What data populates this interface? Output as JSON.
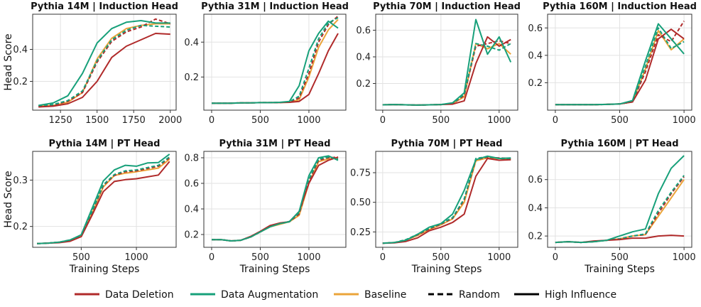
{
  "legend": {
    "data_deletion": "Data Deletion",
    "data_augmentation": "Data Augmentation",
    "baseline": "Baseline",
    "random": "Random",
    "high_influence": "High Influence"
  },
  "colors": {
    "data_deletion": "#b02a2a",
    "data_augmentation": "#17a07a",
    "baseline": "#eba43a"
  },
  "chart_data": [
    {
      "type": "line",
      "title": "Pythia 14M | Induction Head",
      "xlabel": "",
      "ylabel": "Head Score",
      "xlim": [
        1060,
        2040
      ],
      "ylim": [
        0.02,
        0.62
      ],
      "xticks": [
        1250,
        1500,
        1750,
        2000
      ],
      "yticks": [
        0.2,
        0.4
      ],
      "ytick_labels": [
        "0.2",
        "0.4"
      ],
      "x": [
        1100,
        1200,
        1300,
        1400,
        1500,
        1600,
        1700,
        1800,
        1900,
        2000
      ],
      "series": [
        {
          "group": "baseline",
          "style": "solid",
          "values": [
            0.045,
            0.05,
            0.07,
            0.13,
            0.34,
            0.47,
            0.53,
            0.55,
            0.56,
            0.56
          ]
        },
        {
          "group": "data_deletion",
          "style": "dashed",
          "values": [
            0.045,
            0.052,
            0.075,
            0.13,
            0.32,
            0.45,
            0.51,
            0.54,
            0.59,
            0.56
          ]
        },
        {
          "group": "data_augmentation",
          "style": "dashed",
          "values": [
            0.048,
            0.055,
            0.08,
            0.14,
            0.33,
            0.46,
            0.52,
            0.55,
            0.545,
            0.54
          ]
        },
        {
          "group": "data_deletion",
          "style": "solid",
          "values": [
            0.04,
            0.045,
            0.06,
            0.1,
            0.2,
            0.35,
            0.42,
            0.46,
            0.5,
            0.495
          ]
        },
        {
          "group": "data_augmentation",
          "style": "solid",
          "values": [
            0.05,
            0.065,
            0.11,
            0.25,
            0.44,
            0.53,
            0.57,
            0.58,
            0.565,
            0.565
          ]
        }
      ]
    },
    {
      "type": "line",
      "title": "Pythia 31M | Induction Head",
      "xlabel": "",
      "ylabel": "",
      "xlim": [
        -80,
        1380
      ],
      "ylim": [
        0.01,
        0.56
      ],
      "xticks": [
        0,
        500,
        1000
      ],
      "yticks": [
        0.2,
        0.4
      ],
      "ytick_labels": [
        "0.2",
        "0.4"
      ],
      "x": [
        0,
        100,
        200,
        300,
        400,
        500,
        600,
        700,
        800,
        900,
        1000,
        1100,
        1200,
        1300
      ],
      "series": [
        {
          "group": "baseline",
          "style": "solid",
          "values": [
            0.05,
            0.05,
            0.05,
            0.052,
            0.052,
            0.053,
            0.053,
            0.054,
            0.055,
            0.07,
            0.2,
            0.37,
            0.47,
            0.53
          ]
        },
        {
          "group": "data_deletion",
          "style": "dashed",
          "values": [
            0.05,
            0.05,
            0.05,
            0.052,
            0.052,
            0.053,
            0.053,
            0.054,
            0.056,
            0.08,
            0.22,
            0.4,
            0.5,
            0.55
          ]
        },
        {
          "group": "data_augmentation",
          "style": "dashed",
          "values": [
            0.05,
            0.05,
            0.05,
            0.052,
            0.052,
            0.053,
            0.053,
            0.054,
            0.058,
            0.09,
            0.25,
            0.42,
            0.51,
            0.54
          ]
        },
        {
          "group": "data_deletion",
          "style": "solid",
          "values": [
            0.05,
            0.05,
            0.05,
            0.052,
            0.052,
            0.053,
            0.053,
            0.054,
            0.055,
            0.06,
            0.1,
            0.22,
            0.35,
            0.45
          ]
        },
        {
          "group": "data_augmentation",
          "style": "solid",
          "values": [
            0.05,
            0.05,
            0.05,
            0.052,
            0.052,
            0.053,
            0.053,
            0.055,
            0.06,
            0.15,
            0.35,
            0.45,
            0.52,
            0.48
          ]
        }
      ]
    },
    {
      "type": "line",
      "title": "Pythia 70M | Induction Head",
      "xlabel": "",
      "ylabel": "",
      "xlim": [
        -60,
        1160
      ],
      "ylim": [
        0.0,
        0.72
      ],
      "xticks": [
        0,
        500,
        1000
      ],
      "yticks": [
        0.2,
        0.4,
        0.6
      ],
      "ytick_labels": [
        "0.2",
        "0.4",
        "0.6"
      ],
      "x": [
        0,
        100,
        200,
        300,
        400,
        500,
        600,
        700,
        800,
        900,
        1000,
        1100
      ],
      "series": [
        {
          "group": "baseline",
          "style": "solid",
          "values": [
            0.04,
            0.042,
            0.04,
            0.038,
            0.04,
            0.042,
            0.05,
            0.1,
            0.5,
            0.46,
            0.5,
            0.42
          ]
        },
        {
          "group": "data_deletion",
          "style": "dashed",
          "values": [
            0.04,
            0.042,
            0.04,
            0.038,
            0.04,
            0.042,
            0.05,
            0.11,
            0.48,
            0.5,
            0.52,
            0.5
          ]
        },
        {
          "group": "data_augmentation",
          "style": "dashed",
          "values": [
            0.04,
            0.042,
            0.04,
            0.038,
            0.04,
            0.042,
            0.05,
            0.12,
            0.5,
            0.48,
            0.45,
            0.5
          ]
        },
        {
          "group": "data_deletion",
          "style": "solid",
          "values": [
            0.04,
            0.042,
            0.04,
            0.038,
            0.04,
            0.042,
            0.045,
            0.07,
            0.35,
            0.55,
            0.48,
            0.53
          ]
        },
        {
          "group": "data_augmentation",
          "style": "solid",
          "values": [
            0.04,
            0.042,
            0.04,
            0.038,
            0.04,
            0.042,
            0.055,
            0.13,
            0.68,
            0.42,
            0.55,
            0.36
          ]
        }
      ]
    },
    {
      "type": "line",
      "title": "Pythia 160M | Induction Head",
      "xlabel": "",
      "ylabel": "",
      "xlim": [
        -60,
        1060
      ],
      "ylim": [
        0.0,
        0.7
      ],
      "xticks": [
        0,
        500,
        1000
      ],
      "yticks": [
        0.2,
        0.4,
        0.6
      ],
      "ytick_labels": [
        "0.2",
        "0.4",
        "0.6"
      ],
      "x": [
        0,
        100,
        200,
        300,
        400,
        500,
        600,
        700,
        800,
        900,
        1000
      ],
      "series": [
        {
          "group": "baseline",
          "style": "solid",
          "values": [
            0.04,
            0.04,
            0.04,
            0.04,
            0.042,
            0.045,
            0.06,
            0.3,
            0.58,
            0.44,
            0.52
          ]
        },
        {
          "group": "data_deletion",
          "style": "dashed",
          "values": [
            0.04,
            0.04,
            0.04,
            0.04,
            0.042,
            0.045,
            0.06,
            0.28,
            0.55,
            0.5,
            0.65
          ]
        },
        {
          "group": "data_augmentation",
          "style": "dashed",
          "values": [
            0.04,
            0.04,
            0.04,
            0.04,
            0.042,
            0.045,
            0.06,
            0.32,
            0.6,
            0.45,
            0.5
          ]
        },
        {
          "group": "data_deletion",
          "style": "solid",
          "values": [
            0.04,
            0.04,
            0.04,
            0.04,
            0.042,
            0.045,
            0.06,
            0.22,
            0.52,
            0.59,
            0.52
          ]
        },
        {
          "group": "data_augmentation",
          "style": "solid",
          "values": [
            0.04,
            0.04,
            0.04,
            0.04,
            0.042,
            0.045,
            0.07,
            0.36,
            0.63,
            0.52,
            0.41
          ]
        }
      ]
    },
    {
      "type": "line",
      "title": "Pythia 14M | PT Head",
      "xlabel": "Training Steps",
      "ylabel": "Head Score",
      "xlim": [
        60,
        1360
      ],
      "ylim": [
        0.155,
        0.362
      ],
      "xticks": [
        500,
        1000
      ],
      "yticks": [
        0.2,
        0.3
      ],
      "ytick_labels": [
        "0.2",
        "0.3"
      ],
      "x": [
        100,
        200,
        300,
        400,
        500,
        600,
        700,
        800,
        900,
        1000,
        1100,
        1200,
        1300
      ],
      "series": [
        {
          "group": "baseline",
          "style": "solid",
          "values": [
            0.163,
            0.164,
            0.166,
            0.17,
            0.18,
            0.23,
            0.285,
            0.31,
            0.315,
            0.318,
            0.322,
            0.326,
            0.345
          ]
        },
        {
          "group": "data_deletion",
          "style": "dashed",
          "values": [
            0.163,
            0.164,
            0.166,
            0.17,
            0.18,
            0.232,
            0.288,
            0.31,
            0.318,
            0.32,
            0.325,
            0.33,
            0.348
          ]
        },
        {
          "group": "data_augmentation",
          "style": "dashed",
          "values": [
            0.163,
            0.164,
            0.166,
            0.171,
            0.181,
            0.233,
            0.29,
            0.312,
            0.32,
            0.322,
            0.327,
            0.332,
            0.35
          ]
        },
        {
          "group": "data_deletion",
          "style": "solid",
          "values": [
            0.163,
            0.164,
            0.165,
            0.168,
            0.178,
            0.225,
            0.275,
            0.297,
            0.301,
            0.303,
            0.307,
            0.311,
            0.34
          ]
        },
        {
          "group": "data_augmentation",
          "style": "solid",
          "values": [
            0.163,
            0.164,
            0.166,
            0.171,
            0.182,
            0.24,
            0.298,
            0.322,
            0.332,
            0.33,
            0.337,
            0.338,
            0.356
          ]
        }
      ]
    },
    {
      "type": "line",
      "title": "Pythia 31M | PT Head",
      "xlabel": "Training Steps",
      "ylabel": "",
      "xlim": [
        -80,
        1380
      ],
      "ylim": [
        0.1,
        0.85
      ],
      "xticks": [
        0,
        500,
        1000
      ],
      "yticks": [
        0.2,
        0.4,
        0.6,
        0.8
      ],
      "ytick_labels": [
        "0.2",
        "0.4",
        "0.6",
        "0.8"
      ],
      "x": [
        0,
        100,
        200,
        300,
        400,
        500,
        600,
        700,
        800,
        900,
        1000,
        1100,
        1200,
        1300
      ],
      "series": [
        {
          "group": "baseline",
          "style": "solid",
          "values": [
            0.16,
            0.16,
            0.15,
            0.155,
            0.18,
            0.22,
            0.26,
            0.28,
            0.3,
            0.35,
            0.6,
            0.77,
            0.79,
            0.8
          ]
        },
        {
          "group": "data_deletion",
          "style": "dashed",
          "values": [
            0.16,
            0.16,
            0.15,
            0.155,
            0.18,
            0.22,
            0.262,
            0.285,
            0.3,
            0.36,
            0.62,
            0.78,
            0.8,
            0.805
          ]
        },
        {
          "group": "data_augmentation",
          "style": "dashed",
          "values": [
            0.16,
            0.16,
            0.15,
            0.155,
            0.182,
            0.222,
            0.264,
            0.286,
            0.302,
            0.37,
            0.63,
            0.79,
            0.805,
            0.79
          ]
        },
        {
          "group": "data_deletion",
          "style": "solid",
          "values": [
            0.16,
            0.16,
            0.15,
            0.155,
            0.185,
            0.225,
            0.27,
            0.29,
            0.3,
            0.38,
            0.6,
            0.74,
            0.78,
            0.805
          ]
        },
        {
          "group": "data_augmentation",
          "style": "solid",
          "values": [
            0.16,
            0.16,
            0.15,
            0.155,
            0.18,
            0.22,
            0.26,
            0.285,
            0.3,
            0.38,
            0.66,
            0.8,
            0.815,
            0.78
          ]
        }
      ]
    },
    {
      "type": "line",
      "title": "Pythia 70M | PT Head",
      "xlabel": "Training Steps",
      "ylabel": "",
      "xlim": [
        -60,
        1160
      ],
      "ylim": [
        0.12,
        0.93
      ],
      "xticks": [
        0,
        500,
        1000
      ],
      "yticks": [
        0.25,
        0.5,
        0.75
      ],
      "ytick_labels": [
        "0.25",
        "0.50",
        "0.75"
      ],
      "x": [
        0,
        100,
        200,
        300,
        400,
        500,
        600,
        700,
        800,
        900,
        1000,
        1100
      ],
      "series": [
        {
          "group": "baseline",
          "style": "solid",
          "values": [
            0.155,
            0.16,
            0.18,
            0.22,
            0.27,
            0.31,
            0.36,
            0.5,
            0.85,
            0.875,
            0.87,
            0.86
          ]
        },
        {
          "group": "data_deletion",
          "style": "dashed",
          "values": [
            0.155,
            0.16,
            0.182,
            0.225,
            0.275,
            0.315,
            0.365,
            0.52,
            0.86,
            0.88,
            0.875,
            0.87
          ]
        },
        {
          "group": "data_augmentation",
          "style": "dashed",
          "values": [
            0.155,
            0.16,
            0.185,
            0.23,
            0.28,
            0.32,
            0.37,
            0.53,
            0.87,
            0.885,
            0.87,
            0.865
          ]
        },
        {
          "group": "data_deletion",
          "style": "solid",
          "values": [
            0.155,
            0.158,
            0.17,
            0.2,
            0.26,
            0.29,
            0.33,
            0.4,
            0.72,
            0.87,
            0.855,
            0.86
          ]
        },
        {
          "group": "data_augmentation",
          "style": "solid",
          "values": [
            0.155,
            0.16,
            0.18,
            0.23,
            0.29,
            0.32,
            0.4,
            0.6,
            0.86,
            0.89,
            0.87,
            0.875
          ]
        }
      ]
    },
    {
      "type": "line",
      "title": "Pythia 160M | PT Head",
      "xlabel": "Training Steps",
      "ylabel": "",
      "xlim": [
        -60,
        1060
      ],
      "ylim": [
        0.12,
        0.8
      ],
      "xticks": [
        0,
        500,
        1000
      ],
      "yticks": [
        0.2,
        0.4,
        0.6
      ],
      "ytick_labels": [
        "0.2",
        "0.4",
        "0.6"
      ],
      "x": [
        0,
        100,
        200,
        300,
        400,
        500,
        600,
        700,
        800,
        900,
        1000
      ],
      "series": [
        {
          "group": "baseline",
          "style": "solid",
          "values": [
            0.155,
            0.16,
            0.155,
            0.16,
            0.17,
            0.18,
            0.2,
            0.21,
            0.34,
            0.47,
            0.6
          ]
        },
        {
          "group": "data_deletion",
          "style": "dashed",
          "values": [
            0.155,
            0.16,
            0.155,
            0.16,
            0.17,
            0.18,
            0.2,
            0.21,
            0.36,
            0.5,
            0.62
          ]
        },
        {
          "group": "data_augmentation",
          "style": "dashed",
          "values": [
            0.155,
            0.16,
            0.155,
            0.16,
            0.17,
            0.18,
            0.2,
            0.215,
            0.38,
            0.51,
            0.63
          ]
        },
        {
          "group": "data_deletion",
          "style": "solid",
          "values": [
            0.155,
            0.16,
            0.155,
            0.165,
            0.17,
            0.175,
            0.185,
            0.185,
            0.2,
            0.205,
            0.2
          ]
        },
        {
          "group": "data_augmentation",
          "style": "solid",
          "values": [
            0.155,
            0.16,
            0.155,
            0.16,
            0.17,
            0.2,
            0.23,
            0.25,
            0.5,
            0.68,
            0.77
          ]
        }
      ]
    }
  ]
}
